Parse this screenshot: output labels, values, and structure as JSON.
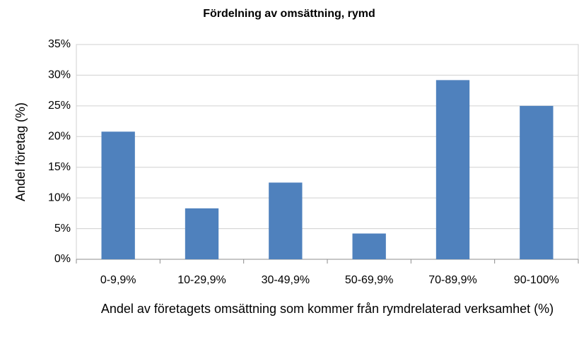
{
  "chart_data": {
    "type": "bar",
    "title": "Fördelning av omsättning, rymd",
    "x_label": "Andel av företagets omsättning som kommer från rymdrelaterad verksamhet (%)",
    "y_label": "Andel företag (%)",
    "categories": [
      "0-9,9%",
      "10-29,9%",
      "30-49,9%",
      "50-69,9%",
      "70-89,9%",
      "90-100%"
    ],
    "values": [
      20.8,
      8.3,
      12.5,
      4.2,
      29.2,
      25.0
    ],
    "color": "#4f81bd",
    "ylim": [
      0,
      35
    ],
    "yticks": [
      {
        "value": 0,
        "label": "0%"
      },
      {
        "value": 5,
        "label": "5%"
      },
      {
        "value": 10,
        "label": "10%"
      },
      {
        "value": 15,
        "label": "15%"
      },
      {
        "value": 20,
        "label": "20%"
      },
      {
        "value": 25,
        "label": "25%"
      },
      {
        "value": 30,
        "label": "30%"
      },
      {
        "value": 35,
        "label": "35%"
      }
    ],
    "grid": true
  }
}
